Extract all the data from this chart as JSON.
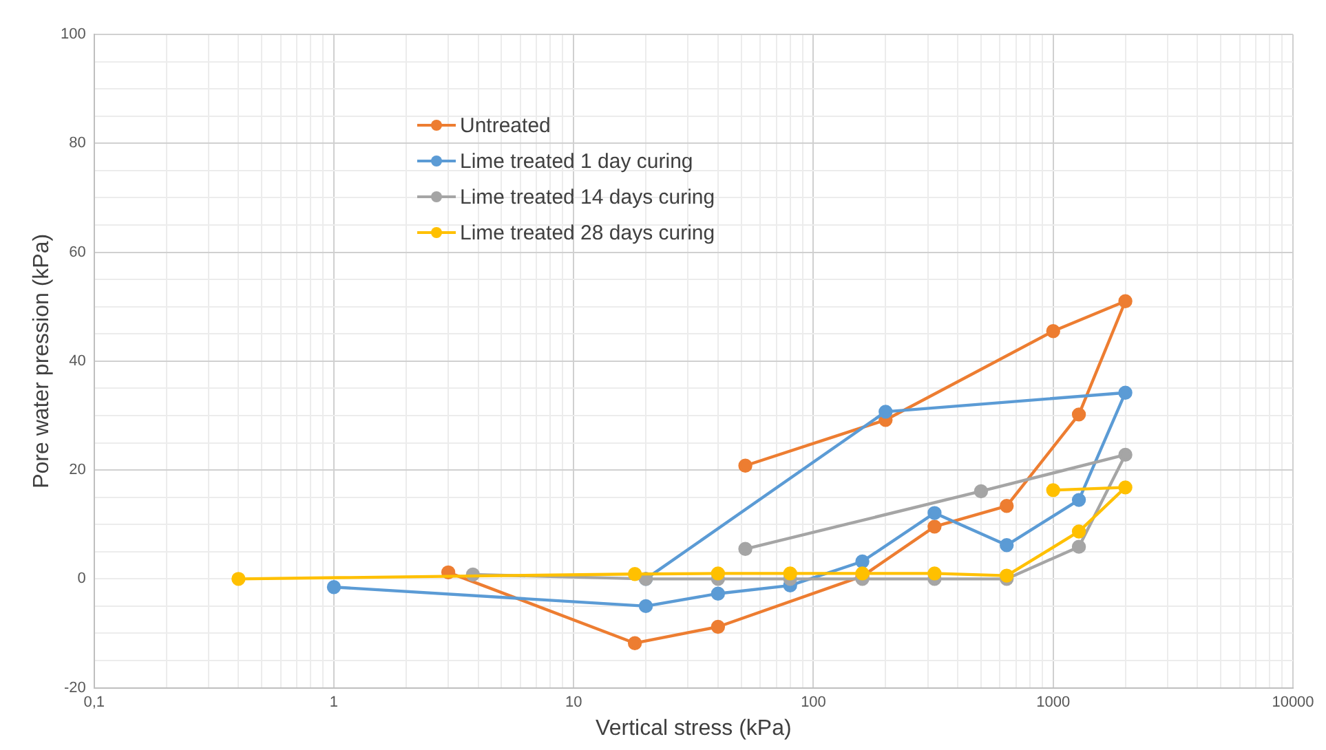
{
  "chart_data": {
    "type": "line",
    "xlabel": "Vertical stress (kPa)",
    "ylabel": "Pore water pression (kPa)",
    "log": "x",
    "xlim": [
      0.1,
      10000
    ],
    "ylim": [
      -20,
      100
    ],
    "xticks": [
      {
        "value": 0.1,
        "label": "0,1"
      },
      {
        "value": 0.2,
        "label": null
      },
      {
        "value": 0.3,
        "label": null
      },
      {
        "value": 0.4,
        "label": null
      },
      {
        "value": 0.5,
        "label": null
      },
      {
        "value": 0.6,
        "label": null
      },
      {
        "value": 0.7,
        "label": null
      },
      {
        "value": 0.8,
        "label": null
      },
      {
        "value": 0.9,
        "label": null
      },
      1,
      {
        "value": 2,
        "label": null
      },
      {
        "value": 3,
        "label": null
      },
      {
        "value": 4,
        "label": null
      },
      {
        "value": 5,
        "label": null
      },
      {
        "value": 6,
        "label": null
      },
      {
        "value": 7,
        "label": null
      },
      {
        "value": 8,
        "label": null
      },
      {
        "value": 9,
        "label": null
      },
      10,
      {
        "value": 20,
        "label": null
      },
      {
        "value": 30,
        "label": null
      },
      {
        "value": 40,
        "label": null
      },
      {
        "value": 50,
        "label": null
      },
      {
        "value": 60,
        "label": null
      },
      {
        "value": 70,
        "label": null
      },
      {
        "value": 80,
        "label": null
      },
      {
        "value": 90,
        "label": null
      },
      100,
      {
        "value": 200,
        "label": null
      },
      {
        "value": 300,
        "label": null
      },
      {
        "value": 400,
        "label": null
      },
      {
        "value": 500,
        "label": null
      },
      {
        "value": 600,
        "label": null
      },
      {
        "value": 700,
        "label": null
      },
      {
        "value": 800,
        "label": null
      },
      {
        "value": 900,
        "label": null
      },
      1000,
      {
        "value": 2000,
        "label": null
      },
      {
        "value": 3000,
        "label": null
      },
      {
        "value": 4000,
        "label": null
      },
      {
        "value": 5000,
        "label": null
      },
      {
        "value": 6000,
        "label": null
      },
      {
        "value": 7000,
        "label": null
      },
      {
        "value": 8000,
        "label": null
      },
      {
        "value": 9000,
        "label": null
      },
      10000
    ],
    "yticks": [
      -20,
      {
        "value": -15,
        "label": null
      },
      {
        "value": -10,
        "label": null
      },
      {
        "value": -5,
        "label": null
      },
      0,
      {
        "value": 5,
        "label": null
      },
      {
        "value": 10,
        "label": null
      },
      {
        "value": 15,
        "label": null
      },
      20,
      {
        "value": 25,
        "label": null
      },
      {
        "value": 30,
        "label": null
      },
      {
        "value": 35,
        "label": null
      },
      40,
      {
        "value": 45,
        "label": null
      },
      {
        "value": 50,
        "label": null
      },
      {
        "value": 55,
        "label": null
      },
      60,
      {
        "value": 65,
        "label": null
      },
      {
        "value": 70,
        "label": null
      },
      {
        "value": 75,
        "label": null
      },
      80,
      {
        "value": 85,
        "label": null
      },
      {
        "value": 90,
        "label": null
      },
      {
        "value": 95,
        "label": null
      },
      100
    ],
    "grid": true,
    "legend": "top left",
    "marker": "circle",
    "line_style": "solid",
    "series": [
      {
        "name": "Untreated",
        "color": "#ed7d31",
        "x": [
          3,
          18,
          40,
          160,
          320,
          640,
          1280,
          2000,
          1000,
          200,
          52
        ],
        "values": [
          1.2,
          -11.8,
          -8.8,
          0.5,
          9.6,
          13.4,
          30.2,
          51,
          45.5,
          29.2,
          20.8
        ]
      },
      {
        "name": "Lime treated 1 day curing",
        "color": "#5b9bd5",
        "x": [
          1,
          20,
          40,
          80,
          160,
          320,
          640,
          1280,
          2000,
          200,
          20
        ],
        "values": [
          -1.5,
          -5,
          -2.7,
          -1.2,
          3.2,
          12.1,
          6.2,
          14.5,
          34.2,
          30.7,
          0
        ]
      },
      {
        "name": "Lime treated 14 days curing",
        "color": "#a5a5a5",
        "x": [
          3.8,
          20,
          40,
          80,
          160,
          320,
          640,
          1280,
          2000,
          500,
          52
        ],
        "values": [
          0.8,
          0,
          0,
          0,
          0,
          0,
          0,
          5.9,
          22.8,
          16.1,
          5.5
        ]
      },
      {
        "name": "Lime treated 28 days curing",
        "color": "#ffc000",
        "x": [
          0.4,
          18,
          40,
          80,
          160,
          320,
          640,
          1280,
          2000,
          1000
        ],
        "values": [
          0,
          0.9,
          1,
          1,
          1,
          1,
          0.6,
          8.7,
          16.8,
          16.3
        ]
      }
    ]
  }
}
